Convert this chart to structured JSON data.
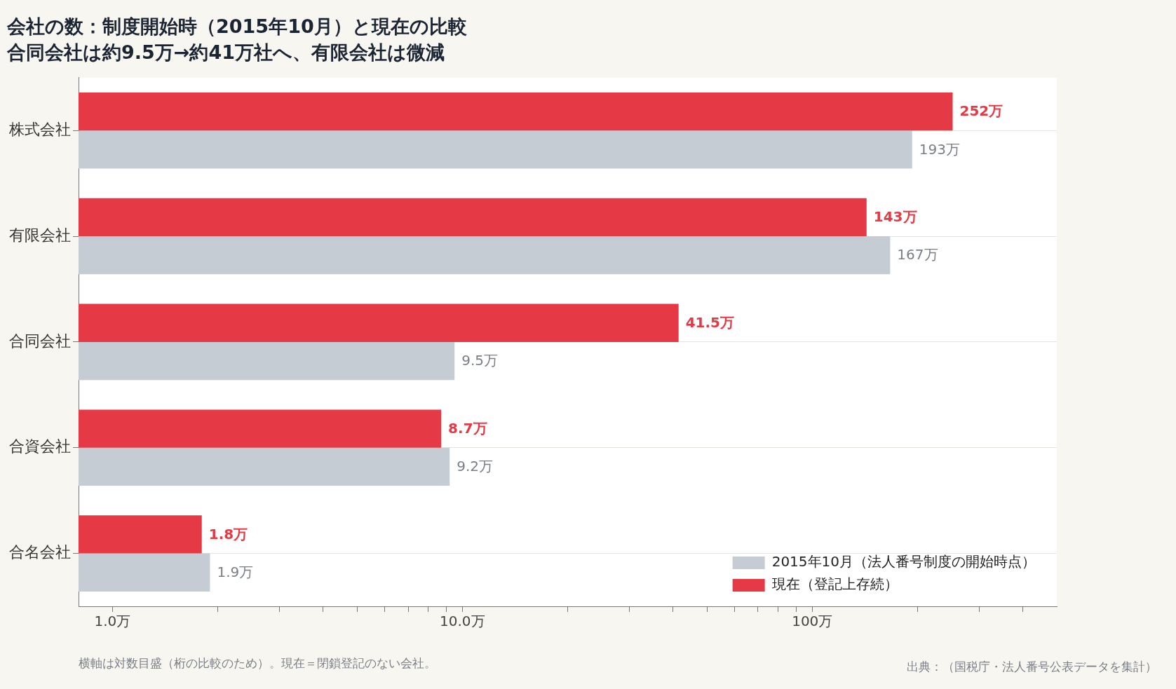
{
  "chart_data": {
    "type": "bar",
    "orientation": "horizontal",
    "title": "会社の数：制度開始時（2015年10月）と現在の比較",
    "subtitle": "合同会社は約9.5万→約41万社へ、有限会社は微減",
    "categories": [
      "株式会社",
      "有限会社",
      "合同会社",
      "合資会社",
      "合名会社"
    ],
    "series": [
      {
        "name": "現在（登記上存続）",
        "color": "#e63946",
        "values": [
          252,
          143,
          41.5,
          8.7,
          1.8
        ],
        "value_labels": [
          "252万",
          "143万",
          "41.5万",
          "8.7万",
          "1.8万"
        ]
      },
      {
        "name": "2015年10月（法人番号制度の開始時点）",
        "color": "#c6ccd4",
        "values": [
          193,
          167,
          9.5,
          9.2,
          1.9
        ],
        "value_labels": [
          "193万",
          "167万",
          "9.5万",
          "9.2万",
          "1.9万"
        ]
      }
    ],
    "log": "x",
    "xlim": [
      0.8,
      500
    ],
    "xticks": [
      {
        "value": 1,
        "label": "1.0万"
      },
      {
        "value": 2,
        "label": null
      },
      {
        "value": 3,
        "label": null
      },
      {
        "value": 4,
        "label": null
      },
      {
        "value": 5,
        "label": null
      },
      {
        "value": 6,
        "label": null
      },
      {
        "value": 7,
        "label": null
      },
      {
        "value": 8,
        "label": null
      },
      {
        "value": 9,
        "label": null
      },
      {
        "value": 10,
        "label": "10.0万"
      },
      {
        "value": 20,
        "label": null
      },
      {
        "value": 30,
        "label": null
      },
      {
        "value": 40,
        "label": null
      },
      {
        "value": 50,
        "label": null
      },
      {
        "value": 60,
        "label": null
      },
      {
        "value": 70,
        "label": null
      },
      {
        "value": 80,
        "label": null
      },
      {
        "value": 90,
        "label": null
      },
      {
        "value": 100,
        "label": "100万"
      },
      {
        "value": 200,
        "label": null
      },
      {
        "value": 300,
        "label": null
      },
      {
        "value": 400,
        "label": null
      }
    ],
    "grid": "y",
    "legend": "bottom right",
    "annotations": [
      "横軸は対数目盛（桁の比較のため）。現在＝閉鎖登記のない会社。",
      "出典：（国税庁・法人番号公表データを集計）"
    ]
  }
}
